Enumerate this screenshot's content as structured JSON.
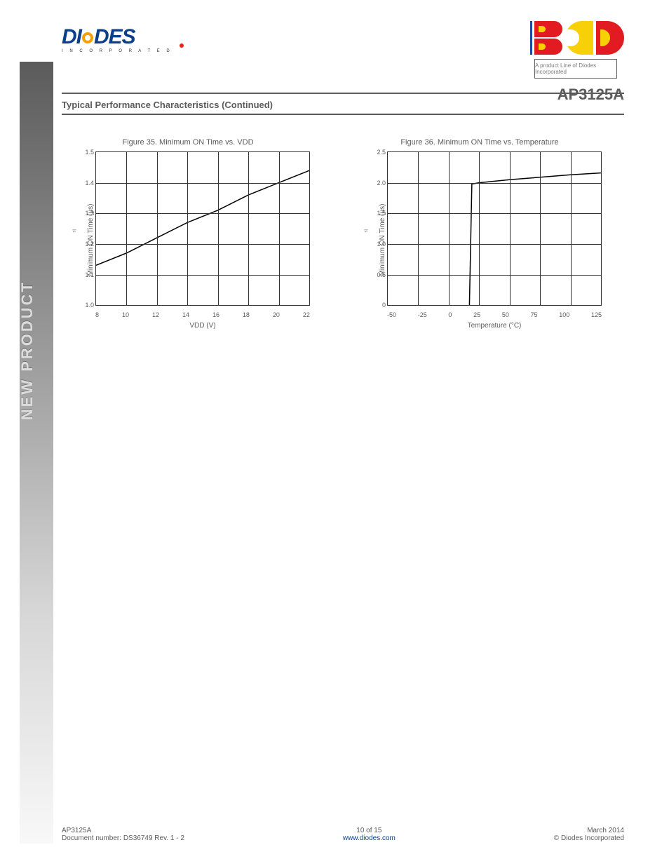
{
  "logos": {
    "diodes_text": "DI   DES",
    "diodes_sub": "I N C O R P O R A T E D",
    "bcd_box_text": "A product Line of Diodes Incorporated"
  },
  "header": {
    "part_number": "AP3125A",
    "section_title": "Typical Performance Characteristics (Continued)"
  },
  "charts": {
    "left": {
      "type": "line",
      "title": "Figure 35. Minimum ON Time vs. VDD",
      "x_label": "VDD (V)",
      "y_label": "Minimum ON Time (",
      "y_unit": "μs",
      "x_ticks": [
        "8",
        "10",
        "12",
        "14",
        "16",
        "18",
        "20",
        "22"
      ],
      "y_ticks": [
        "1.5",
        "1.4",
        "1.3",
        "1.2",
        "1.1",
        "1.0"
      ],
      "grid": {
        "v_count": 7,
        "h_count": 5
      },
      "xlim": [
        8,
        22
      ],
      "ylim": [
        1.0,
        1.5
      ],
      "data_points": [
        {
          "x": 8,
          "y": 1.13
        },
        {
          "x": 10,
          "y": 1.17
        },
        {
          "x": 12,
          "y": 1.22
        },
        {
          "x": 14,
          "y": 1.27
        },
        {
          "x": 16,
          "y": 1.31
        },
        {
          "x": 18,
          "y": 1.36
        },
        {
          "x": 20,
          "y": 1.4
        },
        {
          "x": 22,
          "y": 1.44
        }
      ],
      "line_color": "#000000",
      "line_width": 1.5,
      "grid_color": "#333333",
      "background_color": "#ffffff"
    },
    "right": {
      "type": "line",
      "title": "Figure 36. Minimum ON Time vs. Temperature",
      "x_label": "Temperature (°C)",
      "y_label": "Minimum ON Time (",
      "y_unit": "μs",
      "x_ticks": [
        "-50",
        "-25",
        "0",
        "25",
        "50",
        "75",
        "100",
        "125"
      ],
      "y_ticks": [
        "2.5",
        "2.0",
        "1.5",
        "1.0",
        "0.5",
        "0"
      ],
      "grid": {
        "v_count": 7,
        "h_count": 5
      },
      "xlim": [
        -50,
        125
      ],
      "ylim": [
        0,
        2.5
      ],
      "data_points": [
        {
          "x": 17,
          "y": 0.0
        },
        {
          "x": 19,
          "y": 1.98
        },
        {
          "x": 25,
          "y": 2.0
        },
        {
          "x": 50,
          "y": 2.05
        },
        {
          "x": 75,
          "y": 2.09
        },
        {
          "x": 100,
          "y": 2.13
        },
        {
          "x": 125,
          "y": 2.16
        }
      ],
      "line_color": "#000000",
      "line_width": 1.5,
      "grid_color": "#333333",
      "background_color": "#ffffff"
    }
  },
  "sidebar": {
    "label": "NEW PRODUCT"
  },
  "footer": {
    "left_line1": "AP3125A",
    "left_line2": "Document number: DS36749 Rev. 1 - 2",
    "mid_line1": "10 of 15",
    "mid_url_text": "www.diodes.com",
    "right_line1": "March 2014",
    "right_line2": "© Diodes Incorporated"
  }
}
